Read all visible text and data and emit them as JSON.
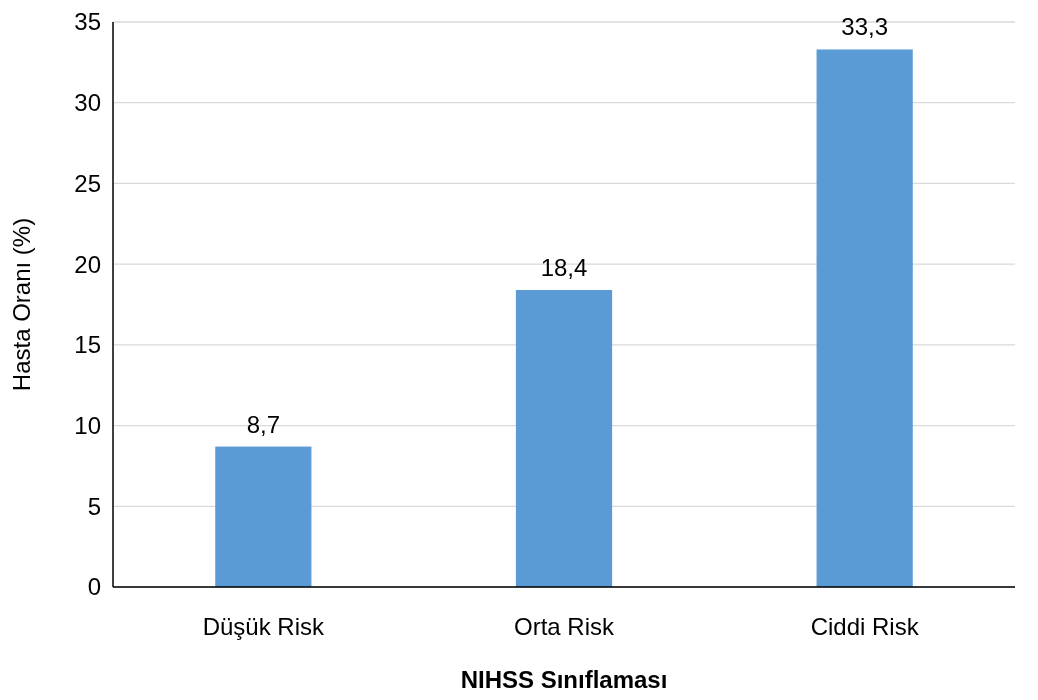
{
  "chart_data": {
    "type": "bar",
    "xlabel": "NIHSS Sınıflaması",
    "ylabel": "Hasta Oranı (%)",
    "categories": [
      "Düşük Risk",
      "Orta Risk",
      "Ciddi Risk"
    ],
    "values": [
      8.7,
      18.4,
      33.3
    ],
    "value_labels": [
      "8,7",
      "18,4",
      "33,3"
    ],
    "color": "#5b9bd5",
    "ylim": [
      0,
      35
    ],
    "yticks": [
      0,
      5,
      10,
      15,
      20,
      25,
      30,
      35
    ],
    "grid": "y"
  }
}
